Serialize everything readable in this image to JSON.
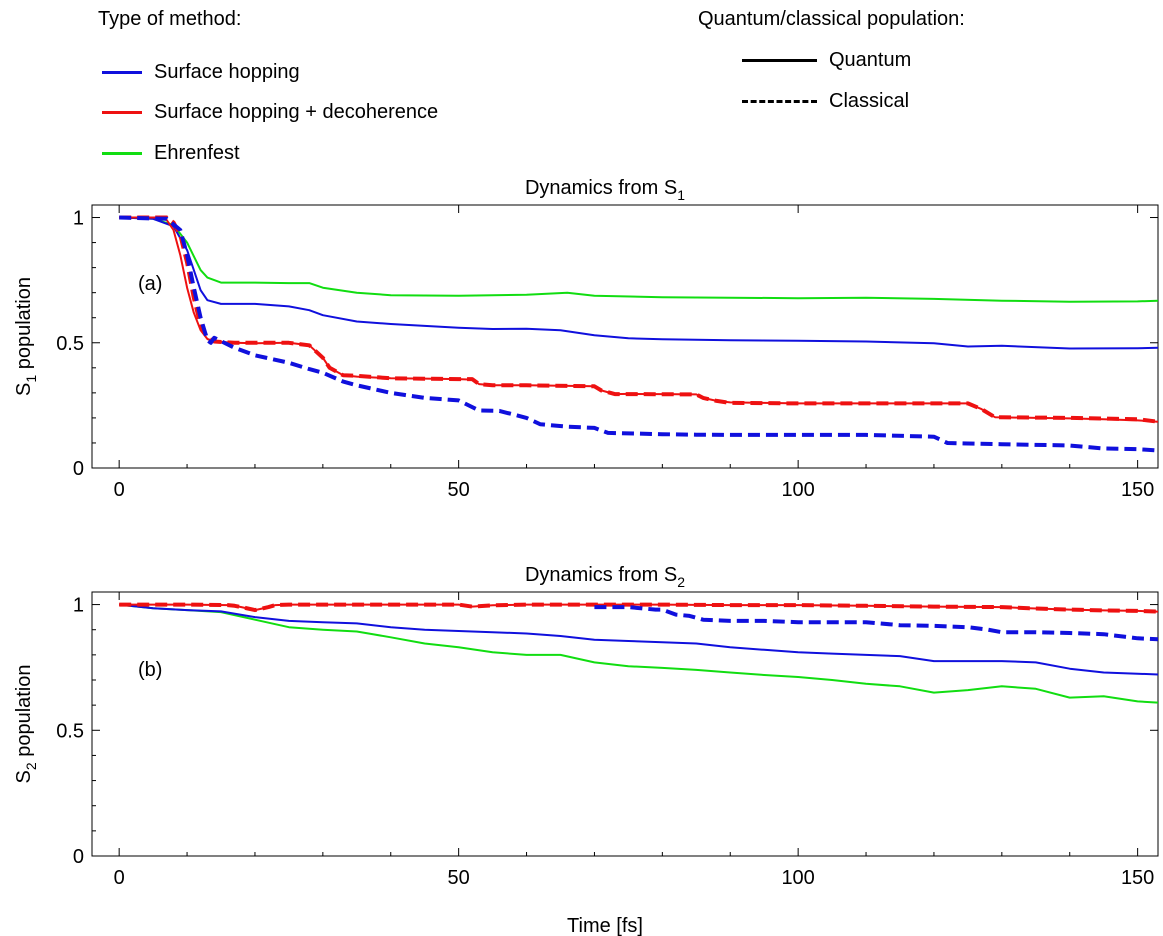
{
  "legend": {
    "method_title": "Type of method:",
    "methods": [
      {
        "label": "Surface hopping",
        "color": "#1010dd"
      },
      {
        "label": "Surface hopping + decoherence",
        "color": "#ee1111"
      },
      {
        "label": "Ehrenfest",
        "color": "#11dd11"
      }
    ],
    "population_title": "Quantum/classical population:",
    "populations": [
      {
        "label": "Quantum",
        "style": "solid"
      },
      {
        "label": "Classical",
        "style": "dashed"
      }
    ]
  },
  "chart_data": [
    {
      "type": "line",
      "title": "Dynamics from S1",
      "title_main": "Dynamics from S",
      "title_sub": "1",
      "panel_label": "(a)",
      "ylabel_main": "S",
      "ylabel_sub": "1",
      "ylabel_rest": " population",
      "xlabel": "",
      "xlim": [
        -4,
        153
      ],
      "ylim": [
        0,
        1.05
      ],
      "xticks": [
        0,
        50,
        100,
        150
      ],
      "xtick_labels": [
        "0",
        "50",
        "100",
        "150"
      ],
      "yticks": [
        0,
        0.5,
        1
      ],
      "ytick_labels": [
        "0",
        "0.5",
        "1"
      ],
      "series": [
        {
          "method": "Ehrenfest",
          "population": "Quantum",
          "color": "#11dd11",
          "dash": "solid",
          "x": [
            0,
            5,
            8,
            10,
            12,
            13,
            15,
            20,
            25,
            28,
            30,
            35,
            40,
            50,
            55,
            60,
            66,
            70,
            80,
            90,
            100,
            110,
            120,
            130,
            140,
            150,
            153
          ],
          "y": [
            1.0,
            0.995,
            0.97,
            0.9,
            0.79,
            0.76,
            0.74,
            0.74,
            0.738,
            0.738,
            0.72,
            0.7,
            0.69,
            0.688,
            0.69,
            0.692,
            0.7,
            0.688,
            0.682,
            0.68,
            0.678,
            0.68,
            0.675,
            0.668,
            0.664,
            0.665,
            0.668
          ]
        },
        {
          "method": "Surface hopping",
          "population": "Quantum",
          "color": "#1010dd",
          "dash": "solid",
          "x": [
            0,
            5,
            8,
            10,
            12,
            13,
            15,
            20,
            25,
            28,
            30,
            35,
            40,
            50,
            55,
            60,
            65,
            70,
            75,
            80,
            90,
            100,
            110,
            120,
            125,
            130,
            140,
            150,
            153
          ],
          "y": [
            1.0,
            0.995,
            0.965,
            0.87,
            0.71,
            0.67,
            0.655,
            0.655,
            0.645,
            0.63,
            0.61,
            0.585,
            0.575,
            0.56,
            0.555,
            0.556,
            0.55,
            0.53,
            0.518,
            0.514,
            0.51,
            0.508,
            0.505,
            0.498,
            0.485,
            0.488,
            0.477,
            0.478,
            0.48
          ]
        },
        {
          "method": "Surface hopping + decoherence",
          "population": "Quantum",
          "color": "#ee1111",
          "dash": "solid",
          "x": [
            0,
            6,
            7,
            8,
            9,
            10,
            11,
            12,
            13,
            14,
            17,
            20,
            25,
            28,
            30,
            31,
            33,
            35,
            40,
            45,
            50,
            52,
            53,
            55,
            60,
            65,
            70,
            71,
            73,
            75,
            80,
            85,
            86,
            88,
            90,
            95,
            100,
            110,
            120,
            125,
            127,
            129,
            135,
            140,
            145,
            150,
            153
          ],
          "y": [
            1.0,
            1.0,
            0.99,
            0.95,
            0.85,
            0.72,
            0.62,
            0.55,
            0.515,
            0.505,
            0.5,
            0.498,
            0.5,
            0.49,
            0.44,
            0.4,
            0.37,
            0.365,
            0.358,
            0.357,
            0.355,
            0.353,
            0.335,
            0.33,
            0.33,
            0.328,
            0.326,
            0.31,
            0.295,
            0.296,
            0.295,
            0.294,
            0.28,
            0.268,
            0.262,
            0.26,
            0.258,
            0.258,
            0.258,
            0.258,
            0.235,
            0.203,
            0.2,
            0.198,
            0.195,
            0.19,
            0.185
          ]
        },
        {
          "method": "Surface hopping + decoherence",
          "population": "Classical",
          "color": "#ee1111",
          "dash": "dashed",
          "x": [
            0,
            7,
            8,
            9,
            10,
            11,
            12,
            13,
            14,
            17,
            20,
            25,
            28,
            30,
            31,
            33,
            35,
            40,
            50,
            52,
            53,
            55,
            60,
            70,
            71,
            73,
            75,
            85,
            86,
            88,
            90,
            100,
            110,
            125,
            127,
            129,
            140,
            150,
            153
          ],
          "y": [
            1.0,
            1.0,
            0.98,
            0.93,
            0.82,
            0.68,
            0.57,
            0.52,
            0.505,
            0.5,
            0.5,
            0.5,
            0.49,
            0.44,
            0.4,
            0.37,
            0.368,
            0.358,
            0.355,
            0.355,
            0.335,
            0.33,
            0.33,
            0.326,
            0.31,
            0.295,
            0.295,
            0.294,
            0.28,
            0.268,
            0.26,
            0.258,
            0.258,
            0.258,
            0.235,
            0.203,
            0.2,
            0.195,
            0.185
          ]
        },
        {
          "method": "Surface hopping",
          "population": "Classical",
          "color": "#1010dd",
          "dash": "dashed",
          "x": [
            0,
            7,
            9,
            10,
            11,
            12,
            13,
            13.5,
            14,
            17,
            20,
            25,
            28,
            30,
            33,
            35,
            40,
            45,
            50,
            53,
            56,
            60,
            62,
            66,
            70,
            72,
            80,
            85,
            90,
            100,
            110,
            120,
            122,
            125,
            130,
            140,
            145,
            150,
            153
          ],
          "y": [
            1.0,
            0.995,
            0.95,
            0.85,
            0.72,
            0.6,
            0.51,
            0.5,
            0.52,
            0.48,
            0.45,
            0.42,
            0.395,
            0.38,
            0.345,
            0.33,
            0.3,
            0.28,
            0.27,
            0.23,
            0.228,
            0.2,
            0.175,
            0.165,
            0.16,
            0.14,
            0.135,
            0.133,
            0.132,
            0.132,
            0.132,
            0.125,
            0.1,
            0.098,
            0.095,
            0.09,
            0.078,
            0.075,
            0.07
          ]
        }
      ]
    },
    {
      "type": "line",
      "title": "Dynamics from S2",
      "title_main": "Dynamics from S",
      "title_sub": "2",
      "panel_label": "(b)",
      "ylabel_main": "S",
      "ylabel_sub": "2",
      "ylabel_rest": " population",
      "xlabel": "Time [fs]",
      "xlim": [
        -4,
        153
      ],
      "ylim": [
        0,
        1.05
      ],
      "xticks": [
        0,
        50,
        100,
        150
      ],
      "xtick_labels": [
        "0",
        "50",
        "100",
        "150"
      ],
      "yticks": [
        0,
        0.5,
        1
      ],
      "ytick_labels": [
        "0",
        "0.5",
        "1"
      ],
      "series": [
        {
          "method": "Ehrenfest",
          "population": "Quantum",
          "color": "#11dd11",
          "dash": "solid",
          "x": [
            0,
            5,
            10,
            15,
            20,
            25,
            30,
            35,
            40,
            45,
            50,
            55,
            60,
            65,
            70,
            75,
            80,
            85,
            90,
            95,
            100,
            105,
            110,
            115,
            120,
            125,
            130,
            135,
            140,
            145,
            150,
            153
          ],
          "y": [
            1.0,
            0.985,
            0.978,
            0.97,
            0.94,
            0.91,
            0.9,
            0.893,
            0.87,
            0.845,
            0.83,
            0.81,
            0.8,
            0.8,
            0.77,
            0.755,
            0.748,
            0.74,
            0.73,
            0.72,
            0.712,
            0.7,
            0.685,
            0.675,
            0.65,
            0.66,
            0.675,
            0.665,
            0.63,
            0.635,
            0.615,
            0.61
          ]
        },
        {
          "method": "Surface hopping",
          "population": "Quantum",
          "color": "#1010dd",
          "dash": "solid",
          "x": [
            0,
            5,
            10,
            15,
            20,
            25,
            30,
            35,
            40,
            45,
            50,
            55,
            60,
            65,
            70,
            75,
            80,
            85,
            90,
            95,
            100,
            105,
            110,
            115,
            120,
            125,
            130,
            135,
            140,
            145,
            150,
            153
          ],
          "y": [
            1.0,
            0.985,
            0.978,
            0.973,
            0.95,
            0.935,
            0.93,
            0.925,
            0.91,
            0.9,
            0.895,
            0.89,
            0.885,
            0.875,
            0.86,
            0.855,
            0.85,
            0.845,
            0.83,
            0.82,
            0.81,
            0.805,
            0.8,
            0.795,
            0.775,
            0.775,
            0.775,
            0.77,
            0.745,
            0.73,
            0.725,
            0.722
          ]
        },
        {
          "method": "Surface hopping + decoherence",
          "population": "Quantum",
          "color": "#ee1111",
          "dash": "solid",
          "x": [
            0,
            10,
            16,
            17,
            18,
            20,
            22,
            23,
            25,
            30,
            40,
            50,
            52,
            55,
            60,
            70,
            80,
            90,
            100,
            110,
            120,
            130,
            134,
            140,
            145,
            150,
            153
          ],
          "y": [
            1.0,
            1.0,
            0.998,
            0.995,
            0.99,
            0.978,
            0.99,
            0.998,
            1.0,
            1.0,
            1.0,
            1.0,
            0.992,
            0.997,
            1.0,
            1.0,
            1.0,
            0.998,
            0.998,
            0.995,
            0.992,
            0.99,
            0.985,
            0.98,
            0.977,
            0.975,
            0.972
          ]
        },
        {
          "method": "Surface hopping + decoherence",
          "population": "Classical",
          "color": "#ee1111",
          "dash": "dashed",
          "x": [
            0,
            10,
            16,
            17,
            18,
            20,
            22,
            23,
            25,
            30,
            40,
            50,
            52,
            55,
            60,
            70,
            80,
            90,
            100,
            110,
            120,
            130,
            134,
            140,
            145,
            150,
            153
          ],
          "y": [
            1.0,
            1.0,
            0.998,
            0.995,
            0.99,
            0.978,
            0.99,
            0.998,
            1.0,
            1.0,
            1.0,
            1.0,
            0.992,
            0.997,
            1.0,
            1.0,
            1.0,
            0.998,
            0.998,
            0.995,
            0.992,
            0.99,
            0.985,
            0.98,
            0.977,
            0.975,
            0.972
          ]
        },
        {
          "method": "Surface hopping",
          "population": "Classical",
          "color": "#1010dd",
          "dash": "dashed",
          "x": [
            70,
            75,
            79,
            80,
            82,
            84,
            86,
            90,
            95,
            100,
            105,
            110,
            112,
            115,
            120,
            125,
            128,
            130,
            135,
            140,
            145,
            150,
            153
          ],
          "y": [
            0.99,
            0.99,
            0.98,
            0.98,
            0.96,
            0.955,
            0.94,
            0.935,
            0.935,
            0.93,
            0.93,
            0.93,
            0.925,
            0.918,
            0.915,
            0.91,
            0.9,
            0.89,
            0.89,
            0.887,
            0.882,
            0.866,
            0.862
          ]
        }
      ]
    }
  ]
}
